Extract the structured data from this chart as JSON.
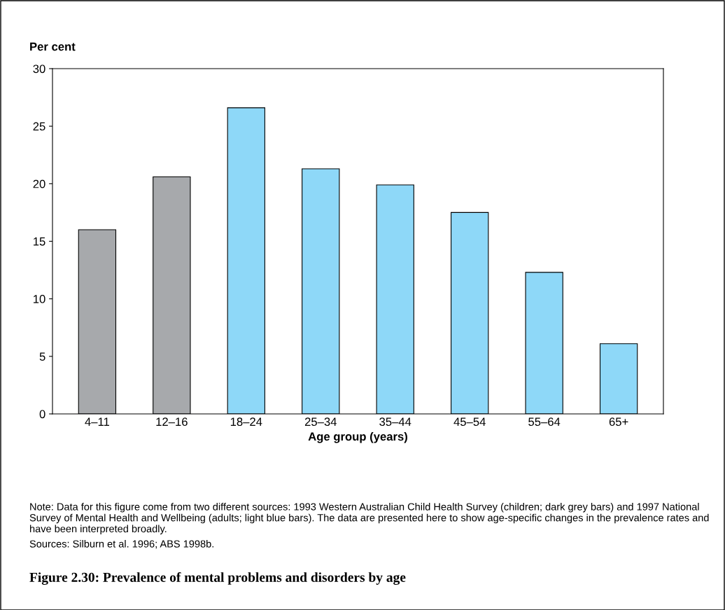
{
  "chart_data": {
    "type": "bar",
    "title": "Figure 2.30: Prevalence of mental problems and disorders by age",
    "xlabel": "Age group (years)",
    "ylabel": "Per cent",
    "categories": [
      "4–11",
      "12–16",
      "18–24",
      "25–34",
      "35–44",
      "45–54",
      "55–64",
      "65+"
    ],
    "values": [
      16.0,
      20.6,
      26.6,
      21.3,
      19.9,
      17.5,
      12.3,
      6.1
    ],
    "colors": [
      "#a7a9ac",
      "#a7a9ac",
      "#8ed8f8",
      "#8ed8f8",
      "#8ed8f8",
      "#8ed8f8",
      "#8ed8f8",
      "#8ed8f8"
    ],
    "ylim": [
      0,
      30
    ],
    "yticks": [
      0,
      5,
      10,
      15,
      20,
      25,
      30
    ],
    "grid": false,
    "legend": false,
    "annotations": [
      "Note: Data for this figure come from two different sources: 1993 Western Australian Child Health Survey (children; dark grey bars) and 1997 National Survey of Mental Health and Wellbeing (adults; light blue bars). The data are presented here to show age-specific changes in the prevalence rates and have been interpreted broadly.",
      "Sources: Silburn et al. 1996; ABS 1998b."
    ]
  }
}
